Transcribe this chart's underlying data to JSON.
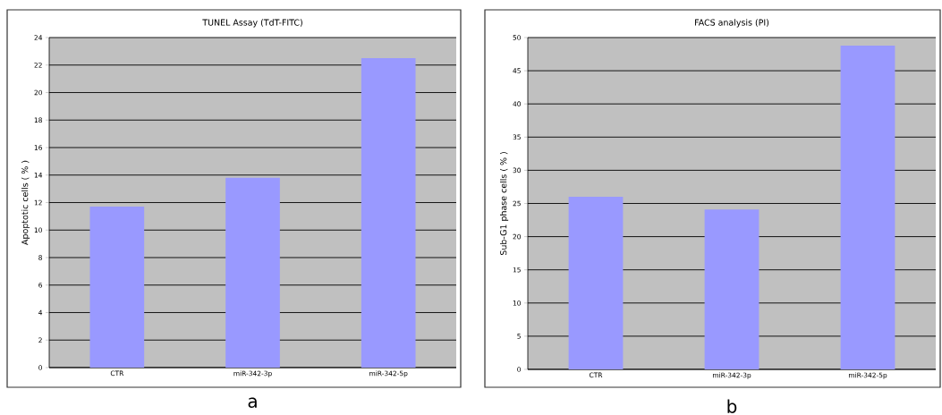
{
  "chart_data": [
    {
      "type": "bar",
      "title": "TUNEL Assay (TdT-FITC)",
      "ylabel": "Apoptotic cells ( % )",
      "categories": [
        "CTR",
        "miR-342-3p",
        "miR-342-5p"
      ],
      "values": [
        11.7,
        13.8,
        22.5
      ],
      "color": "#9999ff",
      "ylim": [
        0,
        24
      ],
      "yticks": [
        0,
        2,
        4,
        6,
        8,
        10,
        12,
        14,
        16,
        18,
        20,
        22,
        24
      ],
      "grid": "y",
      "annotations": [
        "a"
      ]
    },
    {
      "type": "bar",
      "title": "FACS analysis (PI)",
      "ylabel": "Sub-G1 phase cells ( % )",
      "categories": [
        "CTR",
        "miR-342-3p",
        "miR-342-5p"
      ],
      "values": [
        26.0,
        24.1,
        48.8
      ],
      "color": "#9999ff",
      "ylim": [
        0,
        50
      ],
      "yticks": [
        0,
        5,
        10,
        15,
        20,
        25,
        30,
        35,
        40,
        45,
        50
      ],
      "grid": "y",
      "annotations": [
        "b"
      ]
    }
  ]
}
